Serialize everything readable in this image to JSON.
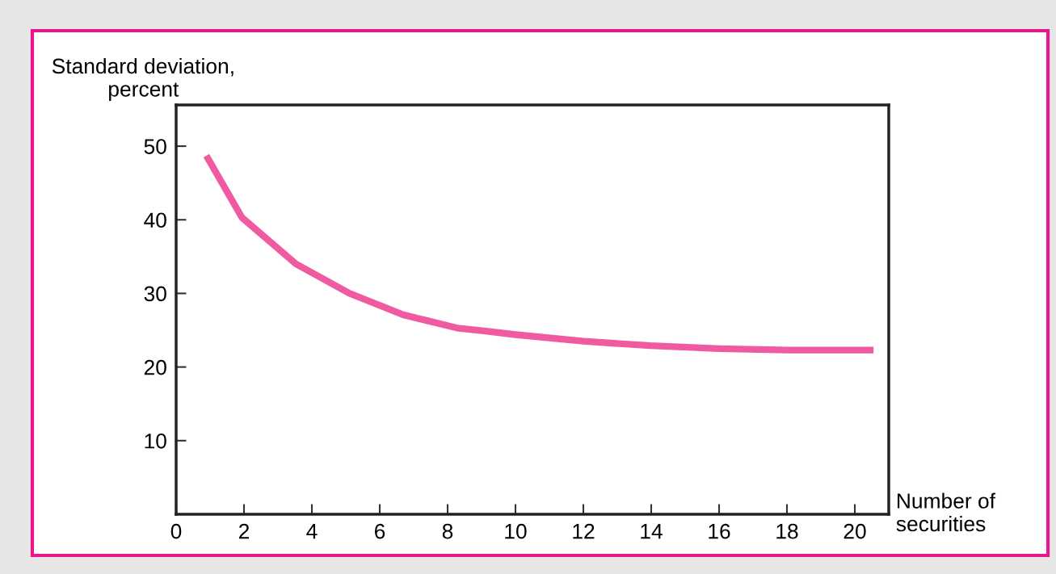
{
  "chart_data": {
    "type": "line",
    "xlabel": "Number of\nsecurities",
    "ylabel": "Standard deviation,\npercent",
    "x": [
      0.89,
      1.94,
      3.53,
      5.11,
      6.69,
      8.28,
      9.07,
      10.0,
      12.0,
      13.98,
      16.0,
      18.0,
      20.55
    ],
    "series": [
      {
        "color": "#f05aa0",
        "values": [
          48.7,
          40.3,
          34.0,
          30.0,
          27.1,
          25.3,
          24.9,
          24.4,
          23.5,
          22.9,
          22.5,
          22.3,
          22.3
        ]
      }
    ],
    "xlim": [
      0,
      21
    ],
    "ylim": [
      0,
      55.6
    ],
    "xticks": [
      0,
      2,
      4,
      6,
      8,
      10,
      12,
      14,
      16,
      18,
      20
    ],
    "yticks": [
      10,
      20,
      30,
      40,
      50
    ],
    "grid": false,
    "legend": false,
    "marker": "none",
    "line_style": "solid"
  }
}
